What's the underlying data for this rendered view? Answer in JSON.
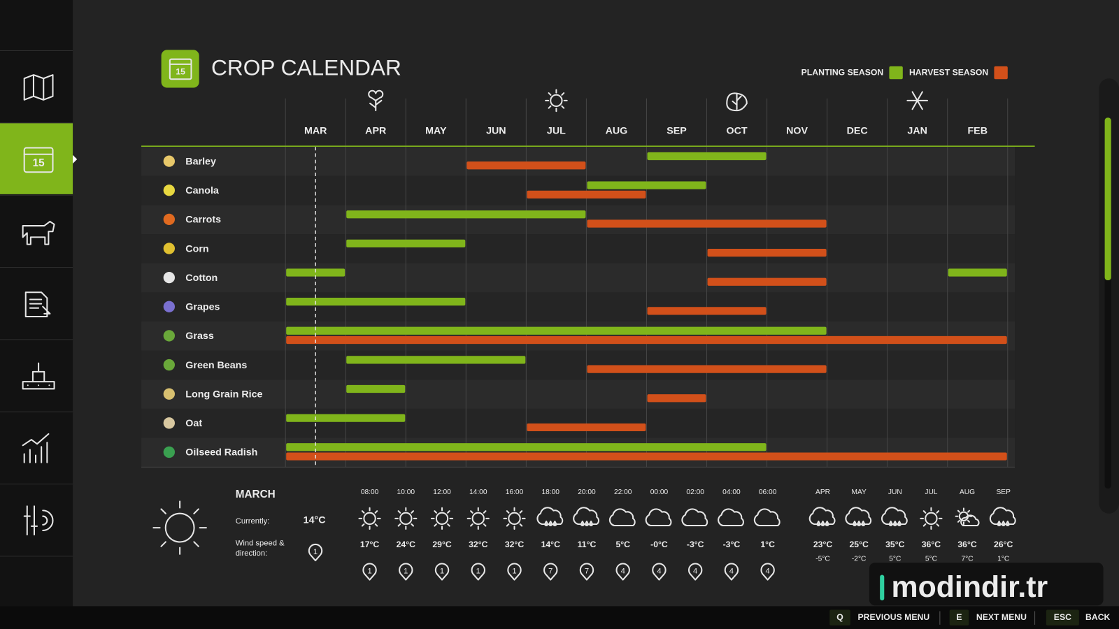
{
  "calendar_icon_day": "15",
  "title": "CROP CALENDAR",
  "legend": {
    "planting": {
      "label": "PLANTING SEASON",
      "color": "#80b51b"
    },
    "harvest": {
      "label": "HARVEST SEASON",
      "color": "#d2501a"
    }
  },
  "months": [
    "MAR",
    "APR",
    "MAY",
    "JUN",
    "JUL",
    "AUG",
    "SEP",
    "OCT",
    "NOV",
    "DEC",
    "JAN",
    "FEB"
  ],
  "crops": [
    {
      "name": "Barley",
      "planting": [
        [
          6,
          8
        ]
      ],
      "harvest": [
        [
          3,
          5
        ]
      ]
    },
    {
      "name": "Canola",
      "planting": [
        [
          5,
          7
        ]
      ],
      "harvest": [
        [
          4,
          6
        ]
      ]
    },
    {
      "name": "Carrots",
      "planting": [
        [
          1,
          5
        ]
      ],
      "harvest": [
        [
          5,
          9
        ]
      ]
    },
    {
      "name": "Corn",
      "planting": [
        [
          1,
          3
        ]
      ],
      "harvest": [
        [
          7,
          9
        ]
      ]
    },
    {
      "name": "Cotton",
      "planting": [
        [
          0,
          1
        ],
        [
          11,
          12
        ]
      ],
      "harvest": [
        [
          7,
          9
        ]
      ]
    },
    {
      "name": "Grapes",
      "planting": [
        [
          0,
          3
        ]
      ],
      "harvest": [
        [
          6,
          8
        ]
      ]
    },
    {
      "name": "Grass",
      "planting": [
        [
          0,
          9
        ]
      ],
      "harvest": [
        [
          0,
          12
        ]
      ]
    },
    {
      "name": "Green Beans",
      "planting": [
        [
          1,
          4
        ]
      ],
      "harvest": [
        [
          5,
          9
        ]
      ]
    },
    {
      "name": "Long Grain Rice",
      "planting": [
        [
          1,
          2
        ]
      ],
      "harvest": [
        [
          6,
          7
        ]
      ]
    },
    {
      "name": "Oat",
      "planting": [
        [
          0,
          2
        ]
      ],
      "harvest": [
        [
          4,
          6
        ]
      ]
    },
    {
      "name": "Oilseed Radish",
      "planting": [
        [
          0,
          8
        ]
      ],
      "harvest": [
        [
          0,
          12
        ]
      ]
    }
  ],
  "weather": {
    "month": "MARCH",
    "current_label": "Currently:",
    "current_temp": "14°C",
    "wind_label": [
      "Wind speed &",
      "direction:"
    ],
    "wind_now": "1",
    "hourly": [
      {
        "time": "08:00",
        "icon": "sun",
        "temp": "17°C",
        "wind": "1"
      },
      {
        "time": "10:00",
        "icon": "sun",
        "temp": "24°C",
        "wind": "1"
      },
      {
        "time": "12:00",
        "icon": "sun",
        "temp": "29°C",
        "wind": "1"
      },
      {
        "time": "14:00",
        "icon": "sun",
        "temp": "32°C",
        "wind": "1"
      },
      {
        "time": "16:00",
        "icon": "sun",
        "temp": "32°C",
        "wind": "1"
      },
      {
        "time": "18:00",
        "icon": "rain",
        "temp": "14°C",
        "wind": "7"
      },
      {
        "time": "20:00",
        "icon": "rain",
        "temp": "11°C",
        "wind": "7"
      },
      {
        "time": "22:00",
        "icon": "cloud",
        "temp": "5°C",
        "wind": "4"
      },
      {
        "time": "00:00",
        "icon": "cloud",
        "temp": "-0°C",
        "wind": "4"
      },
      {
        "time": "02:00",
        "icon": "cloud",
        "temp": "-3°C",
        "wind": "4"
      },
      {
        "time": "04:00",
        "icon": "cloud",
        "temp": "-3°C",
        "wind": "4"
      },
      {
        "time": "06:00",
        "icon": "cloud",
        "temp": "1°C",
        "wind": "4"
      }
    ],
    "monthly": [
      {
        "month": "APR",
        "icon": "rain",
        "high": "23°C",
        "low": "-5°C"
      },
      {
        "month": "MAY",
        "icon": "rain",
        "high": "25°C",
        "low": "-2°C"
      },
      {
        "month": "JUN",
        "icon": "rain",
        "high": "35°C",
        "low": "5°C"
      },
      {
        "month": "JUL",
        "icon": "sun",
        "high": "36°C",
        "low": "5°C"
      },
      {
        "month": "AUG",
        "icon": "partly",
        "high": "36°C",
        "low": "7°C"
      },
      {
        "month": "SEP",
        "icon": "rain",
        "high": "26°C",
        "low": "1°C"
      }
    ]
  },
  "footer": [
    {
      "key": "Q",
      "label": "PREVIOUS MENU"
    },
    {
      "key": "E",
      "label": "NEXT MENU"
    },
    {
      "key": "ESC",
      "label": "BACK"
    }
  ],
  "watermark": "modindir.tr"
}
